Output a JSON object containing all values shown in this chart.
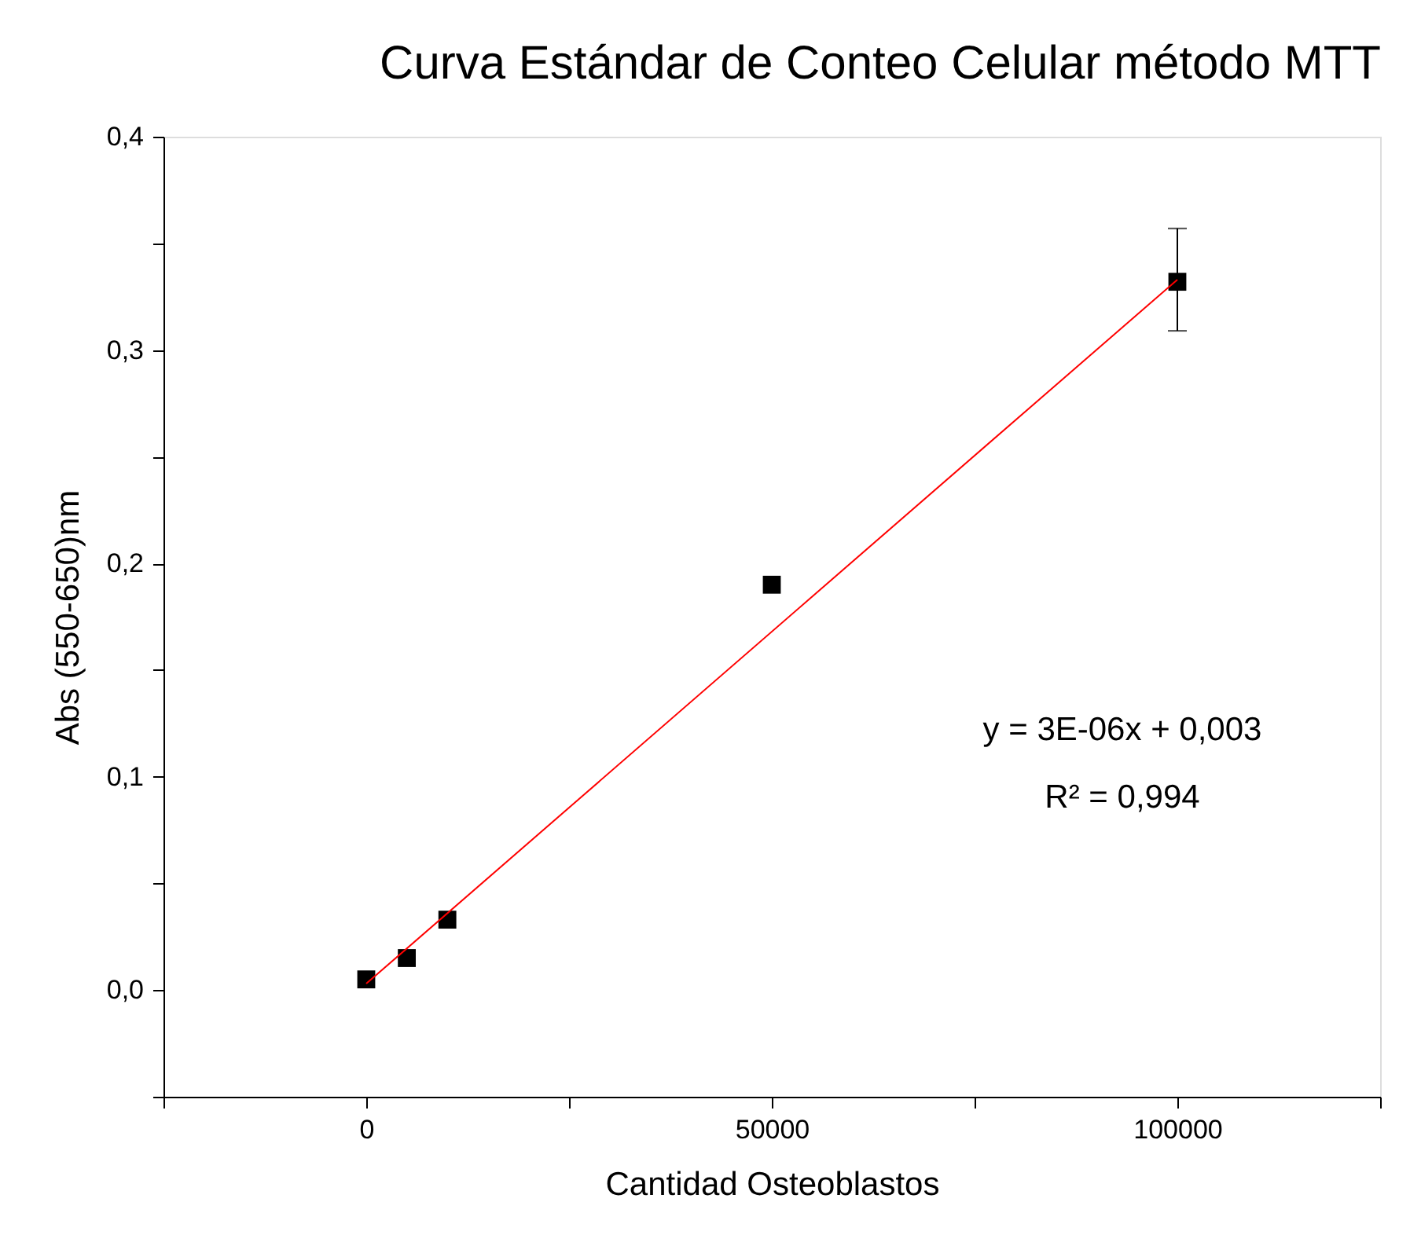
{
  "chart_data": {
    "type": "scatter",
    "title": "Curva Estándar de Conteo Celular método MTT",
    "xlabel": "Cantidad Osteoblastos",
    "ylabel": "Abs (550-650)nm",
    "annotations": [
      "y = 3E-06x + 0,003",
      "R² = 0,994"
    ],
    "x": [
      0,
      5000,
      10000,
      50000,
      100000
    ],
    "series": [
      {
        "color": "#000000",
        "marker": "square",
        "values": [
          0.005,
          0.015,
          0.033,
          0.19,
          0.332
        ],
        "errors": [
          null,
          null,
          null,
          null,
          [
            0.309,
            0.357
          ]
        ]
      },
      {
        "type": "line",
        "color": "#ff0000",
        "x": [
          0,
          100000
        ],
        "values": [
          0.003,
          0.333
        ]
      }
    ],
    "xlim": [
      -25000,
      125000
    ],
    "xticks": [
      {
        "value": -25000,
        "label": null
      },
      0,
      {
        "value": 25000,
        "label": null
      },
      50000,
      {
        "value": 75000,
        "label": null
      },
      100000,
      {
        "value": 125000,
        "label": null
      }
    ],
    "ylim": [
      -0.05,
      0.4
    ],
    "yticks": [
      {
        "value": -0.05,
        "label": null
      },
      {
        "value": 0,
        "label": "0,0"
      },
      {
        "value": 0.05,
        "label": null
      },
      {
        "value": 0.1,
        "label": "0,1"
      },
      {
        "value": 0.15,
        "label": null
      },
      {
        "value": 0.2,
        "label": "0,2"
      },
      {
        "value": 0.25,
        "label": null
      },
      {
        "value": 0.3,
        "label": "0,3"
      },
      {
        "value": 0.35,
        "label": null
      },
      {
        "value": 0.4,
        "label": "0,4"
      }
    ],
    "grid": false
  }
}
